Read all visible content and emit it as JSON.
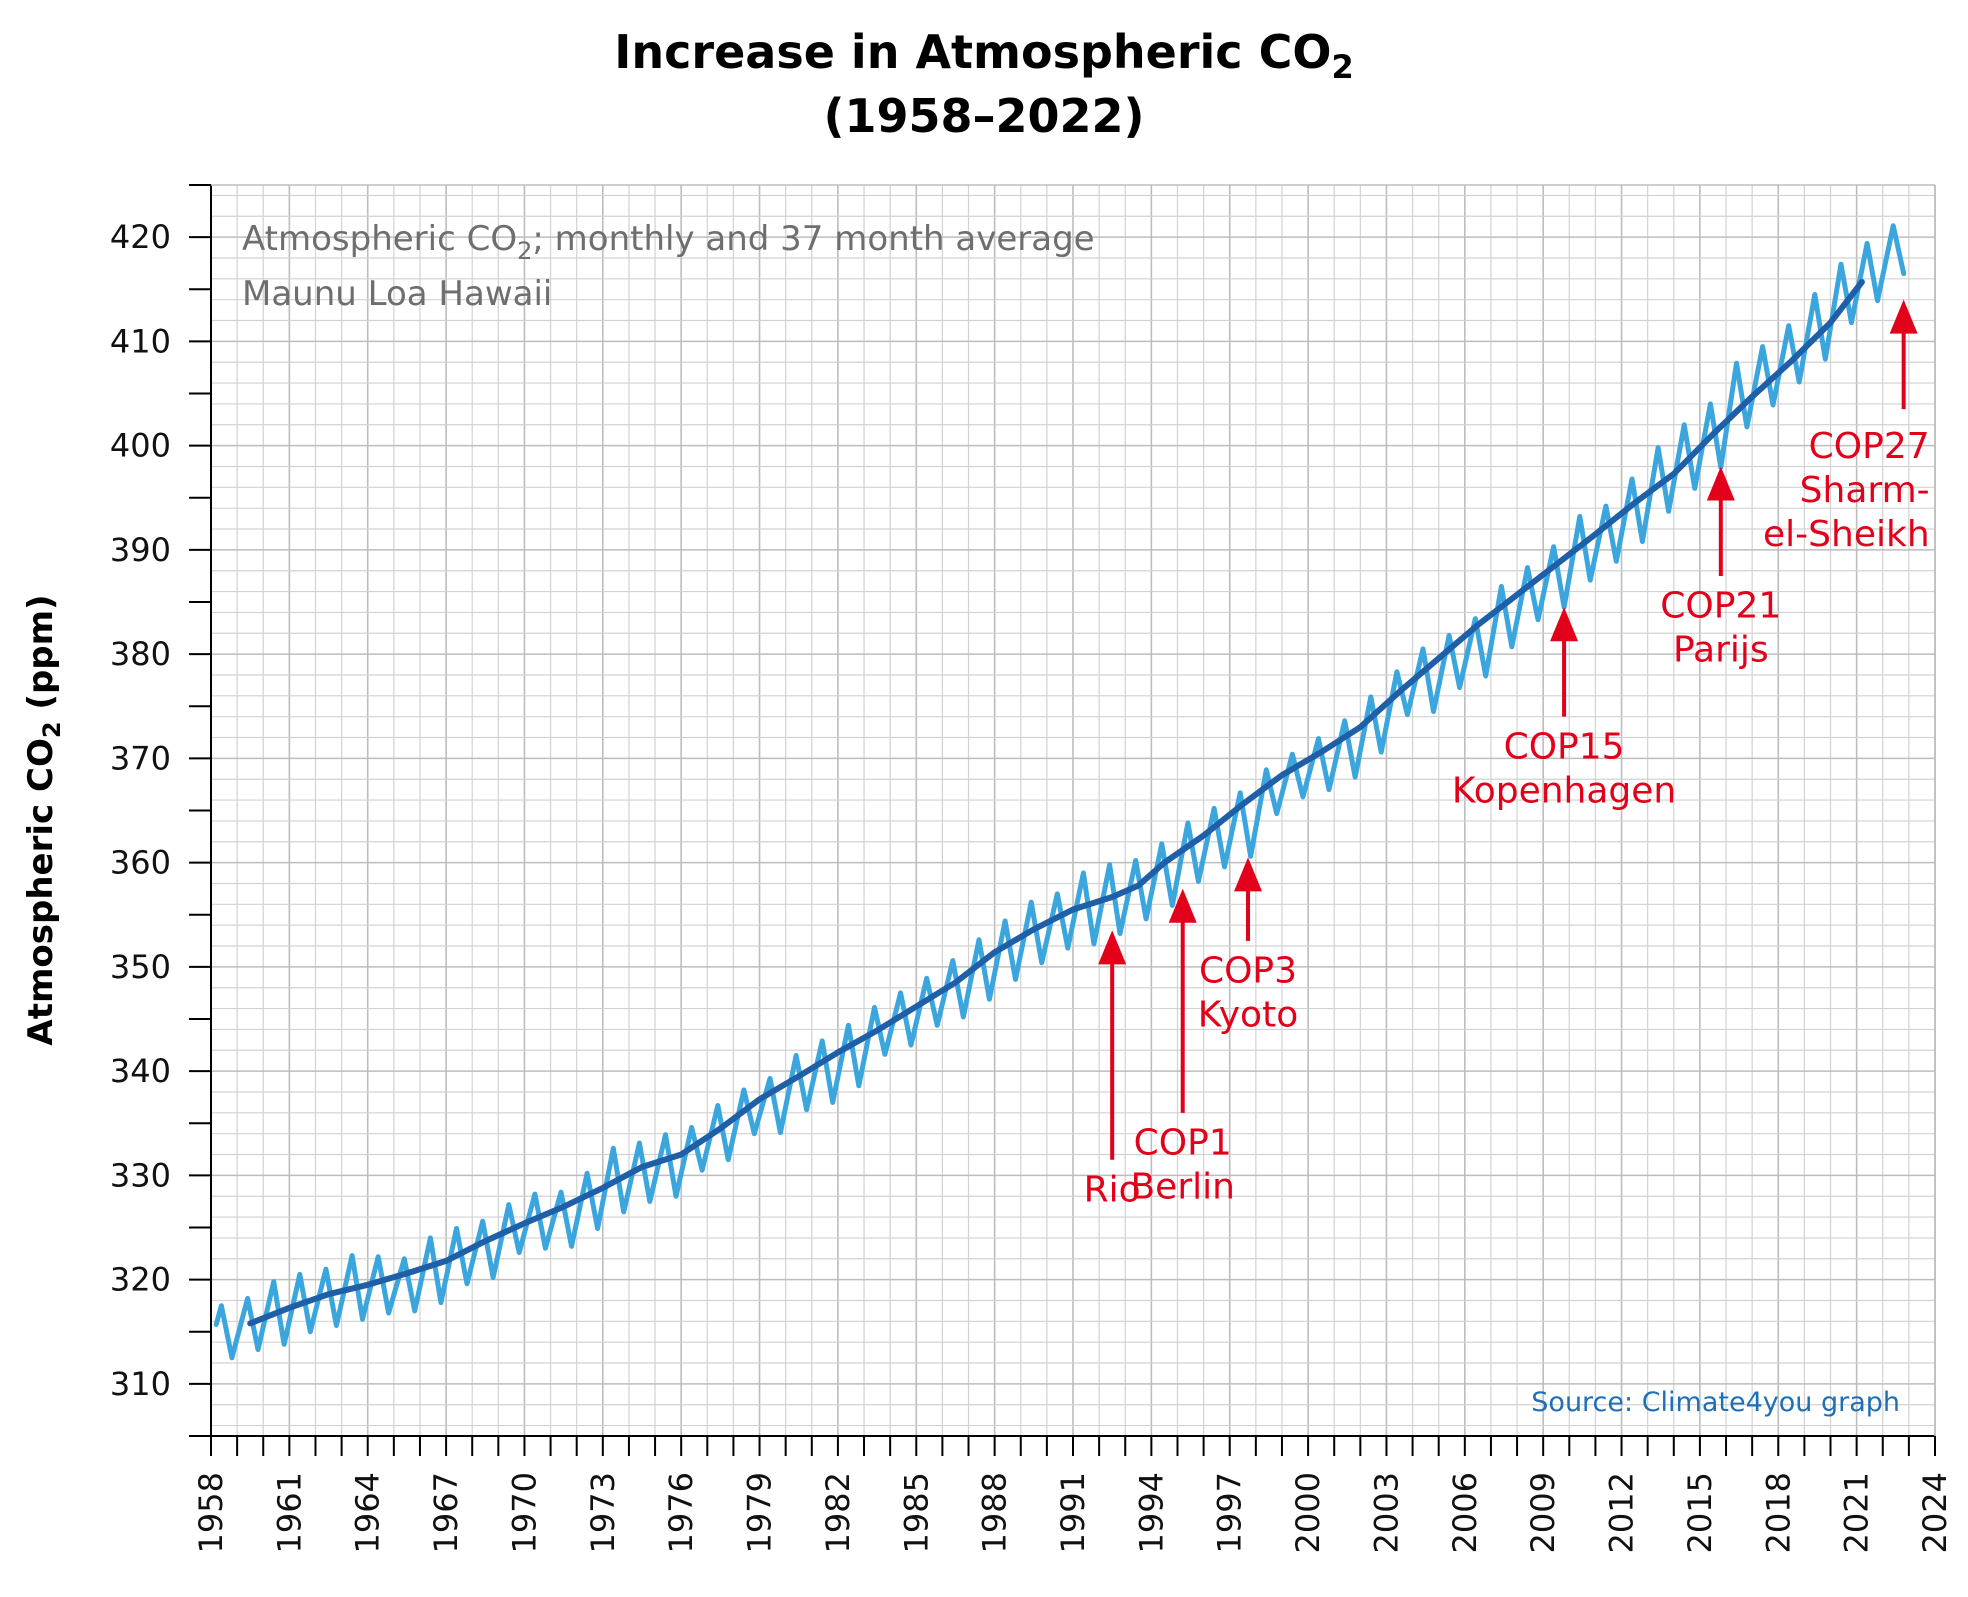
{
  "chart_data": {
    "type": "line",
    "title_line1": "Increase in Atmospheric CO",
    "title_sub": "2",
    "title_line2": "(1958–2022)",
    "ylabel_pre": "Atmospheric CO",
    "ylabel_sub": "2",
    "ylabel_post": " (ppm)",
    "xlim": [
      1958,
      2024
    ],
    "ylim": [
      305,
      425
    ],
    "y_ticks": [
      310,
      320,
      330,
      340,
      350,
      360,
      370,
      380,
      390,
      400,
      410,
      420
    ],
    "x_ticks": [
      1958,
      1961,
      1964,
      1967,
      1970,
      1973,
      1976,
      1979,
      1982,
      1985,
      1988,
      1991,
      1994,
      1997,
      2000,
      2003,
      2006,
      2009,
      2012,
      2015,
      2018,
      2021,
      2024
    ],
    "grid": true,
    "note_line1_pre": "Atmospheric CO",
    "note_line1_sub": "2",
    "note_line1_post": "; monthly and 37 month average",
    "note_line2": "Maunu Loa Hawaii",
    "source": "Source: Climate4you graph",
    "series": [
      {
        "name": "monthly",
        "color": "#3aa6dd",
        "x": [
          1958.2,
          1958.4,
          1958.8,
          1959.4,
          1959.8,
          1960.4,
          1960.8,
          1961.4,
          1961.8,
          1962.4,
          1962.8,
          1963.4,
          1963.8,
          1964.4,
          1964.8,
          1965.4,
          1965.8,
          1966.4,
          1966.8,
          1967.4,
          1967.8,
          1968.4,
          1968.8,
          1969.4,
          1969.8,
          1970.4,
          1970.8,
          1971.4,
          1971.8,
          1972.4,
          1972.8,
          1973.4,
          1973.8,
          1974.4,
          1974.8,
          1975.4,
          1975.8,
          1976.4,
          1976.8,
          1977.4,
          1977.8,
          1978.4,
          1978.8,
          1979.4,
          1979.8,
          1980.4,
          1980.8,
          1981.4,
          1981.8,
          1982.4,
          1982.8,
          1983.4,
          1983.8,
          1984.4,
          1984.8,
          1985.4,
          1985.8,
          1986.4,
          1986.8,
          1987.4,
          1987.8,
          1988.4,
          1988.8,
          1989.4,
          1989.8,
          1990.4,
          1990.8,
          1991.4,
          1991.8,
          1992.4,
          1992.8,
          1993.4,
          1993.8,
          1994.4,
          1994.8,
          1995.4,
          1995.8,
          1996.4,
          1996.8,
          1997.4,
          1997.8,
          1998.4,
          1998.8,
          1999.4,
          1999.8,
          2000.4,
          2000.8,
          2001.4,
          2001.8,
          2002.4,
          2002.8,
          2003.4,
          2003.8,
          2004.4,
          2004.8,
          2005.4,
          2005.8,
          2006.4,
          2006.8,
          2007.4,
          2007.8,
          2008.4,
          2008.8,
          2009.4,
          2009.8,
          2010.4,
          2010.8,
          2011.4,
          2011.8,
          2012.4,
          2012.8,
          2013.4,
          2013.8,
          2014.4,
          2014.8,
          2015.4,
          2015.8,
          2016.4,
          2016.8,
          2017.4,
          2017.8,
          2018.4,
          2018.8,
          2019.4,
          2019.8,
          2020.4,
          2020.8,
          2021.4,
          2021.8,
          2022.4,
          2022.8
        ],
        "values": [
          315.7,
          317.5,
          312.5,
          318.2,
          313.3,
          319.8,
          313.8,
          320.5,
          315.0,
          321.0,
          315.6,
          322.3,
          316.2,
          322.2,
          316.8,
          322.0,
          317.0,
          324.0,
          317.8,
          324.9,
          319.6,
          325.6,
          320.2,
          327.2,
          322.6,
          328.2,
          323.0,
          328.4,
          323.2,
          330.2,
          324.9,
          332.6,
          326.5,
          333.1,
          327.5,
          333.9,
          328.0,
          334.6,
          330.5,
          336.7,
          331.5,
          338.2,
          334.0,
          339.3,
          334.1,
          341.5,
          336.3,
          342.9,
          337.0,
          344.4,
          338.6,
          346.1,
          341.6,
          347.5,
          342.5,
          348.9,
          344.4,
          350.6,
          345.2,
          352.6,
          346.9,
          354.4,
          348.8,
          356.2,
          350.4,
          357.0,
          351.8,
          359.0,
          352.2,
          359.8,
          353.2,
          360.2,
          354.6,
          361.8,
          355.9,
          363.8,
          358.2,
          365.2,
          359.6,
          366.7,
          360.6,
          368.9,
          364.7,
          370.4,
          366.3,
          371.9,
          367.0,
          373.6,
          368.2,
          375.9,
          370.6,
          378.3,
          374.2,
          380.5,
          374.5,
          381.8,
          376.8,
          383.4,
          377.9,
          386.5,
          380.7,
          388.3,
          383.3,
          390.3,
          384.5,
          393.2,
          387.1,
          394.2,
          388.9,
          396.8,
          390.8,
          399.8,
          393.7,
          402.0,
          395.9,
          404.0,
          397.9,
          407.9,
          401.8,
          409.5,
          403.9,
          411.5,
          406.1,
          414.5,
          408.3,
          417.4,
          411.8,
          419.4,
          413.9,
          421.1,
          416.5
        ]
      },
      {
        "name": "37 month average",
        "color": "#1f5fa8",
        "x": [
          1959.5,
          1961,
          1962.5,
          1964,
          1965.5,
          1967,
          1968.5,
          1970,
          1971.5,
          1973,
          1974.5,
          1976,
          1977.5,
          1979,
          1980.5,
          1982,
          1983.5,
          1985,
          1986.5,
          1988,
          1989.5,
          1991,
          1992.5,
          1993.5,
          1994.5,
          1996,
          1997.5,
          1999,
          2000.5,
          2002,
          2003.5,
          2005,
          2006.5,
          2008,
          2009.5,
          2011,
          2012.5,
          2014,
          2015.5,
          2017,
          2018.5,
          2020,
          2021.2
        ],
        "values": [
          315.8,
          317.3,
          318.6,
          319.5,
          320.6,
          321.8,
          323.7,
          325.4,
          327.0,
          328.8,
          330.8,
          332.0,
          334.5,
          337.3,
          339.5,
          341.8,
          343.9,
          346.2,
          348.5,
          351.4,
          353.6,
          355.5,
          356.7,
          357.8,
          360.0,
          362.6,
          365.6,
          368.4,
          370.6,
          373.0,
          376.4,
          379.6,
          382.8,
          385.7,
          388.6,
          391.5,
          394.5,
          397.3,
          401.1,
          404.7,
          408.1,
          411.8,
          415.7
        ]
      }
    ],
    "annotations": [
      {
        "lines": [
          "Rio"
        ],
        "year": 1992.5,
        "arrow_tip": 353.5,
        "arrow_base": 331.5,
        "text_y": 327.5
      },
      {
        "lines": [
          "COP1",
          "Berlin"
        ],
        "year": 1995.2,
        "arrow_tip": 357.5,
        "arrow_base": 336,
        "text_y": 332
      },
      {
        "lines": [
          "COP3",
          "Kyoto"
        ],
        "year": 1997.7,
        "arrow_tip": 360.5,
        "arrow_base": 352.5,
        "text_y": 348.5
      },
      {
        "lines": [
          "COP15",
          "Kopenhagen"
        ],
        "year": 2009.8,
        "arrow_tip": 384.5,
        "arrow_base": 374,
        "text_y": 370
      },
      {
        "lines": [
          "COP21",
          "Parijs"
        ],
        "year": 2015.8,
        "arrow_tip": 398,
        "arrow_base": 387.5,
        "text_y": 383.5
      },
      {
        "lines": [
          "COP27",
          "Sharm-",
          "el-Sheikh"
        ],
        "year": 2022.8,
        "arrow_tip": 414,
        "arrow_base": 403.5,
        "text_y": 398.8,
        "anchor": "end",
        "text_x": 2022.8
      }
    ]
  }
}
